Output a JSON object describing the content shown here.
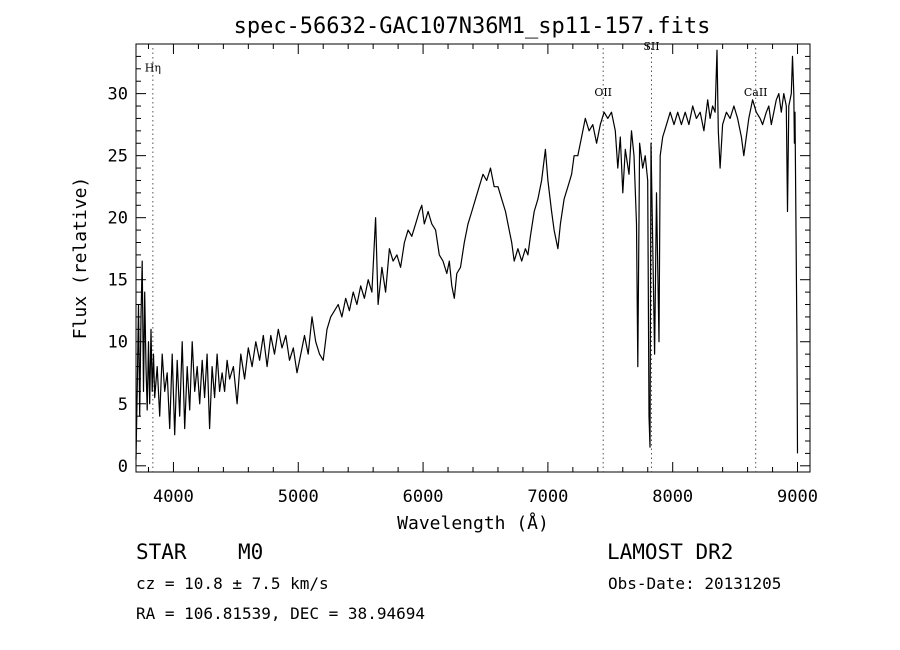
{
  "chart_data": {
    "type": "line",
    "title": "spec-56632-GAC107N36M1_sp11-157.fits",
    "xlabel": "Wavelength (Å)",
    "ylabel": "Flux (relative)",
    "xlim": [
      3700,
      9100
    ],
    "ylim": [
      -0.5,
      34
    ],
    "x_ticks": [
      4000,
      5000,
      6000,
      7000,
      8000,
      9000
    ],
    "y_ticks": [
      0,
      5,
      10,
      15,
      20,
      25,
      30
    ],
    "grid": false,
    "series": [
      {
        "points": [
          [
            3700,
            0.5
          ],
          [
            3710,
            6
          ],
          [
            3720,
            13
          ],
          [
            3730,
            4
          ],
          [
            3740,
            12
          ],
          [
            3750,
            16.5
          ],
          [
            3760,
            6
          ],
          [
            3770,
            14
          ],
          [
            3780,
            8
          ],
          [
            3790,
            4.5
          ],
          [
            3800,
            10
          ],
          [
            3810,
            5
          ],
          [
            3820,
            11
          ],
          [
            3830,
            6
          ],
          [
            3840,
            9
          ],
          [
            3850,
            5.5
          ],
          [
            3870,
            8
          ],
          [
            3890,
            4
          ],
          [
            3910,
            9
          ],
          [
            3930,
            6
          ],
          [
            3950,
            7.5
          ],
          [
            3970,
            3
          ],
          [
            3990,
            9
          ],
          [
            4010,
            2.5
          ],
          [
            4030,
            8.5
          ],
          [
            4050,
            4
          ],
          [
            4070,
            10
          ],
          [
            4090,
            3
          ],
          [
            4110,
            8
          ],
          [
            4130,
            4.5
          ],
          [
            4150,
            10
          ],
          [
            4170,
            6
          ],
          [
            4190,
            8
          ],
          [
            4210,
            5
          ],
          [
            4230,
            8.5
          ],
          [
            4250,
            5.5
          ],
          [
            4270,
            9
          ],
          [
            4290,
            3
          ],
          [
            4310,
            8
          ],
          [
            4330,
            5.5
          ],
          [
            4350,
            9
          ],
          [
            4370,
            6
          ],
          [
            4390,
            7.5
          ],
          [
            4410,
            6
          ],
          [
            4430,
            8.5
          ],
          [
            4450,
            7
          ],
          [
            4480,
            8
          ],
          [
            4510,
            5
          ],
          [
            4540,
            9
          ],
          [
            4570,
            7
          ],
          [
            4600,
            9.5
          ],
          [
            4630,
            8
          ],
          [
            4660,
            10
          ],
          [
            4690,
            8.5
          ],
          [
            4720,
            10.5
          ],
          [
            4750,
            8
          ],
          [
            4780,
            10.5
          ],
          [
            4810,
            9
          ],
          [
            4840,
            11
          ],
          [
            4870,
            9.5
          ],
          [
            4900,
            10.5
          ],
          [
            4930,
            8.5
          ],
          [
            4960,
            9.5
          ],
          [
            4990,
            7.5
          ],
          [
            5020,
            9
          ],
          [
            5050,
            10.5
          ],
          [
            5080,
            9
          ],
          [
            5110,
            12
          ],
          [
            5140,
            10
          ],
          [
            5170,
            9
          ],
          [
            5200,
            8.5
          ],
          [
            5230,
            11
          ],
          [
            5260,
            12
          ],
          [
            5290,
            12.5
          ],
          [
            5320,
            13
          ],
          [
            5350,
            12
          ],
          [
            5380,
            13.5
          ],
          [
            5410,
            12.5
          ],
          [
            5440,
            14
          ],
          [
            5470,
            13
          ],
          [
            5500,
            14.5
          ],
          [
            5530,
            13.5
          ],
          [
            5560,
            15
          ],
          [
            5590,
            14
          ],
          [
            5620,
            20
          ],
          [
            5640,
            13
          ],
          [
            5670,
            16
          ],
          [
            5700,
            14
          ],
          [
            5730,
            17.5
          ],
          [
            5760,
            16.5
          ],
          [
            5790,
            17
          ],
          [
            5820,
            16
          ],
          [
            5850,
            18
          ],
          [
            5880,
            19
          ],
          [
            5910,
            18.5
          ],
          [
            5940,
            19.5
          ],
          [
            5970,
            20.5
          ],
          [
            5990,
            21
          ],
          [
            6010,
            19.5
          ],
          [
            6040,
            20.5
          ],
          [
            6070,
            19.5
          ],
          [
            6100,
            19
          ],
          [
            6130,
            17
          ],
          [
            6160,
            16.5
          ],
          [
            6190,
            15.5
          ],
          [
            6210,
            16.5
          ],
          [
            6230,
            14.5
          ],
          [
            6250,
            13.5
          ],
          [
            6270,
            15.5
          ],
          [
            6300,
            16
          ],
          [
            6330,
            18
          ],
          [
            6360,
            19.5
          ],
          [
            6390,
            20.5
          ],
          [
            6420,
            21.5
          ],
          [
            6450,
            22.5
          ],
          [
            6480,
            23.5
          ],
          [
            6510,
            23
          ],
          [
            6540,
            24
          ],
          [
            6570,
            22.5
          ],
          [
            6600,
            22.5
          ],
          [
            6630,
            21.5
          ],
          [
            6660,
            20.5
          ],
          [
            6690,
            19
          ],
          [
            6710,
            18
          ],
          [
            6730,
            16.5
          ],
          [
            6760,
            17.5
          ],
          [
            6790,
            16.5
          ],
          [
            6820,
            17.5
          ],
          [
            6840,
            17
          ],
          [
            6860,
            18.5
          ],
          [
            6890,
            20.5
          ],
          [
            6920,
            21.5
          ],
          [
            6950,
            23
          ],
          [
            6980,
            25.5
          ],
          [
            7000,
            23
          ],
          [
            7030,
            20.5
          ],
          [
            7050,
            19
          ],
          [
            7080,
            17.5
          ],
          [
            7100,
            19.5
          ],
          [
            7130,
            21.5
          ],
          [
            7160,
            22.5
          ],
          [
            7190,
            23.5
          ],
          [
            7210,
            25
          ],
          [
            7240,
            25
          ],
          [
            7270,
            26.5
          ],
          [
            7300,
            28
          ],
          [
            7330,
            27
          ],
          [
            7360,
            27.5
          ],
          [
            7390,
            26
          ],
          [
            7420,
            27.5
          ],
          [
            7450,
            28.5
          ],
          [
            7480,
            28
          ],
          [
            7510,
            28.5
          ],
          [
            7540,
            27
          ],
          [
            7560,
            24
          ],
          [
            7580,
            26.5
          ],
          [
            7600,
            22
          ],
          [
            7620,
            25.5
          ],
          [
            7650,
            23.5
          ],
          [
            7670,
            27
          ],
          [
            7690,
            25
          ],
          [
            7710,
            19.5
          ],
          [
            7720,
            8
          ],
          [
            7735,
            26
          ],
          [
            7760,
            24
          ],
          [
            7780,
            25
          ],
          [
            7800,
            23
          ],
          [
            7810,
            4
          ],
          [
            7818,
            1.5
          ],
          [
            7826,
            26
          ],
          [
            7840,
            18
          ],
          [
            7855,
            9
          ],
          [
            7870,
            22
          ],
          [
            7890,
            10
          ],
          [
            7900,
            25
          ],
          [
            7920,
            26.5
          ],
          [
            7950,
            27.5
          ],
          [
            7980,
            28.5
          ],
          [
            8010,
            27.5
          ],
          [
            8040,
            28.5
          ],
          [
            8070,
            27.5
          ],
          [
            8100,
            28.5
          ],
          [
            8130,
            27.5
          ],
          [
            8160,
            29
          ],
          [
            8190,
            28
          ],
          [
            8220,
            28.5
          ],
          [
            8250,
            27
          ],
          [
            8280,
            29.5
          ],
          [
            8300,
            28
          ],
          [
            8320,
            29
          ],
          [
            8340,
            28.5
          ],
          [
            8355,
            33.5
          ],
          [
            8365,
            27
          ],
          [
            8380,
            24
          ],
          [
            8400,
            27.5
          ],
          [
            8430,
            28.5
          ],
          [
            8460,
            28
          ],
          [
            8490,
            29
          ],
          [
            8520,
            28
          ],
          [
            8550,
            26.5
          ],
          [
            8570,
            25
          ],
          [
            8590,
            26.5
          ],
          [
            8610,
            28
          ],
          [
            8640,
            29.5
          ],
          [
            8670,
            28.5
          ],
          [
            8700,
            28
          ],
          [
            8720,
            27.5
          ],
          [
            8750,
            28.5
          ],
          [
            8770,
            29
          ],
          [
            8790,
            27.5
          ],
          [
            8810,
            28.5
          ],
          [
            8830,
            29.5
          ],
          [
            8850,
            30
          ],
          [
            8870,
            28.5
          ],
          [
            8890,
            30
          ],
          [
            8910,
            29
          ],
          [
            8920,
            20.5
          ],
          [
            8930,
            29
          ],
          [
            8950,
            30
          ],
          [
            8960,
            33
          ],
          [
            8970,
            30
          ],
          [
            8975,
            26
          ],
          [
            8980,
            28.5
          ],
          [
            8995,
            10.5
          ],
          [
            9000,
            1
          ]
        ]
      }
    ],
    "line_markers": [
      {
        "label": "Hη",
        "x": 3835,
        "label_y": 31.8
      },
      {
        "label": "OII",
        "x": 7443,
        "label_y": 29.8
      },
      {
        "label": "SII",
        "x": 7830,
        "label_y": 33.5
      },
      {
        "label": "CaII",
        "x": 8665,
        "label_y": 29.8
      }
    ]
  },
  "info": {
    "object_class": "STAR",
    "subclass": "M0",
    "survey": "LAMOST DR2",
    "redshift_text": "cz = 10.8 ± 7.5 km/s",
    "obs_date_text": "Obs-Date: 20131205",
    "coords_text": "RA = 106.81539, DEC =  38.94694"
  }
}
